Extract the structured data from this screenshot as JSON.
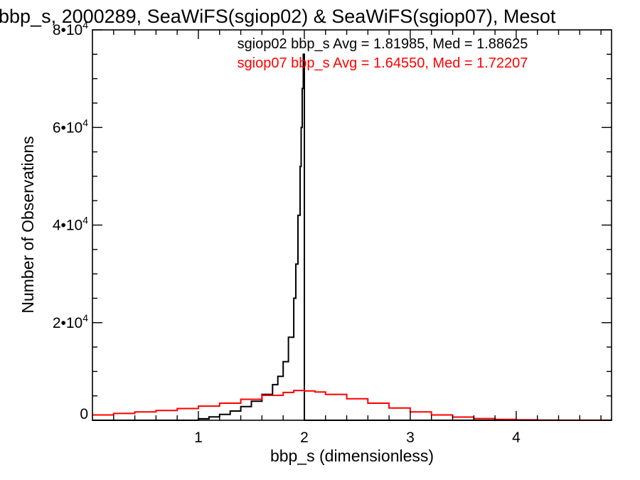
{
  "chart_data": {
    "type": "line",
    "title": "bbp_s, 2000289, SeaWiFS(sgiop02) & SeaWiFS(sgiop07), Mesot",
    "xlabel": "bbp_s (dimensionless)",
    "ylabel": "Number of Observations",
    "xlim": [
      0.0,
      4.9
    ],
    "ylim": [
      0,
      80000
    ],
    "x_ticks": [
      {
        "value": 1,
        "label": "1"
      },
      {
        "value": 2,
        "label": "2"
      },
      {
        "value": 3,
        "label": "3"
      },
      {
        "value": 4,
        "label": "4"
      }
    ],
    "y_ticks": [
      {
        "value": 0,
        "mantissa": "0",
        "exponent": ""
      },
      {
        "value": 20000,
        "mantissa": "2•10",
        "exponent": "4"
      },
      {
        "value": 40000,
        "mantissa": "4•10",
        "exponent": "4"
      },
      {
        "value": 60000,
        "mantissa": "6•10",
        "exponent": "4"
      },
      {
        "value": 80000,
        "mantissa": "8•10",
        "exponent": "4"
      }
    ],
    "grid": false,
    "legend": "top-center",
    "annotations": [
      {
        "text": "sgiop02 bbp_s Avg = 1.81985, Med = 1.88625",
        "color": "#000000"
      },
      {
        "text": "sgiop07 bbp_s Avg = 1.64550, Med = 1.72207",
        "color": "#ff0000"
      }
    ],
    "series": [
      {
        "color": "#000000",
        "style": "step",
        "x": [
          0.0,
          0.8,
          1.0,
          1.1,
          1.2,
          1.3,
          1.4,
          1.5,
          1.6,
          1.7,
          1.75,
          1.8,
          1.85,
          1.9,
          1.92,
          1.94,
          1.96,
          1.97,
          1.98,
          1.99,
          2.0,
          2.01,
          4.9
        ],
        "y": [
          0,
          0,
          300,
          700,
          1200,
          1900,
          2800,
          3900,
          5300,
          7300,
          9000,
          12000,
          17000,
          25000,
          32000,
          42000,
          52000,
          60000,
          68000,
          75000,
          0,
          0,
          0
        ]
      },
      {
        "color": "#ff0000",
        "style": "step",
        "x": [
          0.0,
          0.2,
          0.4,
          0.6,
          0.8,
          1.0,
          1.2,
          1.4,
          1.6,
          1.8,
          1.9,
          2.0,
          2.1,
          2.2,
          2.4,
          2.6,
          2.8,
          3.0,
          3.2,
          3.4,
          3.6,
          3.8,
          4.0,
          4.2,
          4.4,
          4.6,
          4.9
        ],
        "y": [
          1100,
          1400,
          1700,
          2000,
          2400,
          2900,
          3500,
          4300,
          5100,
          5700,
          6100,
          6000,
          5800,
          5300,
          4400,
          3500,
          2500,
          1700,
          1100,
          650,
          350,
          180,
          90,
          40,
          20,
          10,
          0
        ]
      }
    ]
  }
}
